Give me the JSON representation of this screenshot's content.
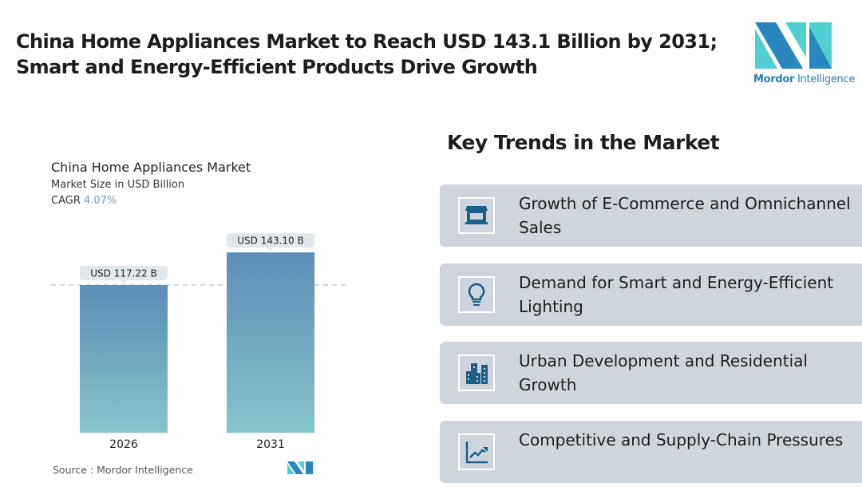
{
  "title": "China Home Appliances Market to Reach USD 143.1 Billion by 2031; Smart and Energy-Efficient Products Drive Growth",
  "logo": {
    "brand": "Mordor",
    "suffix": "Intelligence"
  },
  "chart_data": {
    "type": "bar",
    "title": "China Home Appliances Market",
    "subtitle": "Market Size in USD Billion",
    "cagr_label": "CAGR",
    "cagr_value": "4.07%",
    "categories": [
      "2026",
      "2031"
    ],
    "values": [
      117.22,
      143.1
    ],
    "data_labels": [
      "USD 117.22 B",
      "USD 143.10 B"
    ],
    "ylim": [
      0,
      150
    ],
    "colors": {
      "top": "#5b8db8",
      "bottom": "#86c5c9"
    }
  },
  "source": "Source :  Mordor Intelligence",
  "trends": {
    "heading": "Key Trends in the Market",
    "items": [
      {
        "icon": "storefront-icon",
        "label": "Growth of E-Commerce and Omnichannel Sales"
      },
      {
        "icon": "lightbulb-icon",
        "label": "Demand for Smart and Energy-Efficient Lighting"
      },
      {
        "icon": "buildings-icon",
        "label": "Urban Development and Residential Growth"
      },
      {
        "icon": "trend-chart-icon",
        "label": "Competitive and Supply-Chain Pressures"
      }
    ]
  },
  "accent": "#1f5f87"
}
